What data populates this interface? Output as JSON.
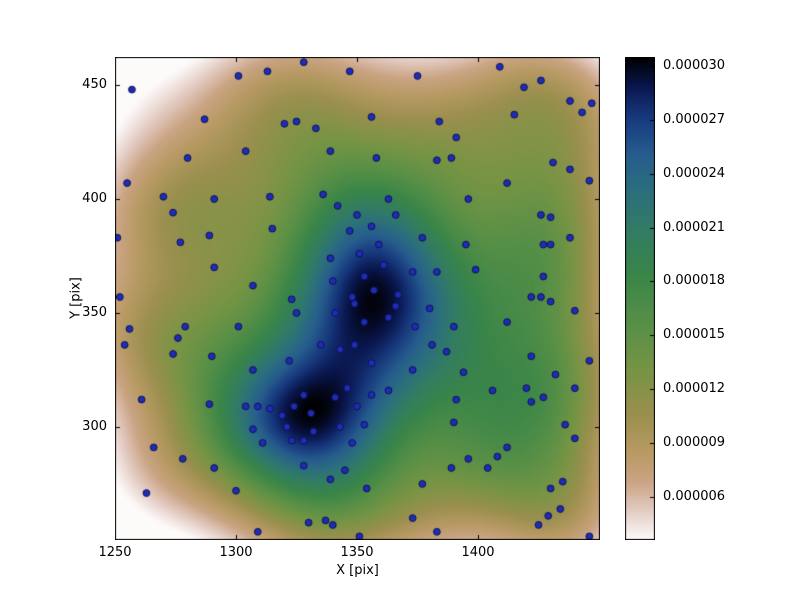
{
  "figure": {
    "background": "#ffffff"
  },
  "chart_data": {
    "type": "heatmap",
    "subtype": "gaussian-kde-density-with-scatter-overlay",
    "title": "",
    "xlabel": "X [pix]",
    "ylabel": "Y [pix]",
    "xlim": [
      1250,
      1450.4
    ],
    "ylim": [
      250.4,
      462.3
    ],
    "x_ticks": [
      1250,
      1300,
      1350,
      1400
    ],
    "x_tick_labels": [
      "1250",
      "1300",
      "1350",
      "1400"
    ],
    "y_ticks": [
      450,
      400,
      350,
      300
    ],
    "y_tick_labels": [
      "450",
      "400",
      "350",
      "300"
    ],
    "grid": false,
    "colorbar": {
      "position": "right",
      "vmin": 3.6e-06,
      "vmax": 3.05e-05,
      "tick_values": [
        3e-05,
        2.7e-05,
        2.4e-05,
        2.1e-05,
        1.8e-05,
        1.5e-05,
        1.2e-05,
        9e-06,
        6e-06
      ],
      "tick_labels": [
        "0.000030",
        "0.000027",
        "0.000024",
        "0.000021",
        "0.000018",
        "0.000015",
        "0.000012",
        "0.000009",
        "0.000006"
      ]
    },
    "colormap": {
      "name": "gist_earth_r",
      "stops": [
        [
          0.0,
          0,
          0,
          0
        ],
        [
          0.06,
          10,
          22,
          77
        ],
        [
          0.12,
          22,
          55,
          124
        ],
        [
          0.2,
          38,
          92,
          141
        ],
        [
          0.28,
          44,
          111,
          125
        ],
        [
          0.36,
          50,
          124,
          99
        ],
        [
          0.45,
          57,
          133,
          72
        ],
        [
          0.55,
          86,
          143,
          70
        ],
        [
          0.65,
          119,
          148,
          68
        ],
        [
          0.74,
          154,
          143,
          78
        ],
        [
          0.82,
          184,
          154,
          100
        ],
        [
          0.88,
          202,
          164,
          132
        ],
        [
          0.94,
          227,
          203,
          194
        ],
        [
          1.0,
          253,
          250,
          250
        ]
      ]
    },
    "kde": {
      "bandwidth": 21,
      "scale_peak_to": 3.05e-05
    },
    "marker": {
      "fill": "#1f2db4",
      "edge": "#0d1257",
      "radius": 3.4
    },
    "points": [
      [
        1257,
        448
      ],
      [
        1301,
        454
      ],
      [
        1313,
        456
      ],
      [
        1328,
        460
      ],
      [
        1347,
        456
      ],
      [
        1375,
        454
      ],
      [
        1409,
        458
      ],
      [
        1419,
        449
      ],
      [
        1426,
        452
      ],
      [
        1438,
        443
      ],
      [
        1447,
        442
      ],
      [
        1287,
        435
      ],
      [
        1320,
        433
      ],
      [
        1325,
        434
      ],
      [
        1333,
        431
      ],
      [
        1356,
        436
      ],
      [
        1384,
        434
      ],
      [
        1391,
        427
      ],
      [
        1415,
        437
      ],
      [
        1443,
        438
      ],
      [
        1280,
        418
      ],
      [
        1304,
        421
      ],
      [
        1339,
        421
      ],
      [
        1358,
        418
      ],
      [
        1383,
        417
      ],
      [
        1389,
        418
      ],
      [
        1431,
        416
      ],
      [
        1438,
        413
      ],
      [
        1255,
        407
      ],
      [
        1270,
        401
      ],
      [
        1274,
        394
      ],
      [
        1291,
        400
      ],
      [
        1314,
        401
      ],
      [
        1336,
        402
      ],
      [
        1342,
        397
      ],
      [
        1350,
        393
      ],
      [
        1363,
        400
      ],
      [
        1366,
        393
      ],
      [
        1396,
        400
      ],
      [
        1412,
        407
      ],
      [
        1426,
        393
      ],
      [
        1430,
        392
      ],
      [
        1446,
        408
      ],
      [
        1251,
        383
      ],
      [
        1277,
        381
      ],
      [
        1289,
        384
      ],
      [
        1315,
        387
      ],
      [
        1339,
        374
      ],
      [
        1347,
        386
      ],
      [
        1351,
        376
      ],
      [
        1356,
        388
      ],
      [
        1359,
        380
      ],
      [
        1377,
        383
      ],
      [
        1395,
        380
      ],
      [
        1427,
        380
      ],
      [
        1430,
        380
      ],
      [
        1438,
        383
      ],
      [
        1291,
        370
      ],
      [
        1307,
        362
      ],
      [
        1323,
        356
      ],
      [
        1340,
        364
      ],
      [
        1348,
        357
      ],
      [
        1353,
        366
      ],
      [
        1357,
        360
      ],
      [
        1361,
        371
      ],
      [
        1367,
        358
      ],
      [
        1373,
        368
      ],
      [
        1383,
        368
      ],
      [
        1399,
        369
      ],
      [
        1422,
        357
      ],
      [
        1426,
        357
      ],
      [
        1427,
        366
      ],
      [
        1252,
        357
      ],
      [
        1256,
        343
      ],
      [
        1276,
        339
      ],
      [
        1279,
        344
      ],
      [
        1301,
        344
      ],
      [
        1325,
        350
      ],
      [
        1341,
        350
      ],
      [
        1349,
        354
      ],
      [
        1353,
        346
      ],
      [
        1363,
        348
      ],
      [
        1366,
        353
      ],
      [
        1374,
        344
      ],
      [
        1380,
        352
      ],
      [
        1390,
        344
      ],
      [
        1412,
        346
      ],
      [
        1430,
        355
      ],
      [
        1440,
        351
      ],
      [
        1254,
        336
      ],
      [
        1274,
        332
      ],
      [
        1290,
        331
      ],
      [
        1307,
        325
      ],
      [
        1322,
        329
      ],
      [
        1335,
        336
      ],
      [
        1343,
        334
      ],
      [
        1349,
        336
      ],
      [
        1356,
        328
      ],
      [
        1373,
        325
      ],
      [
        1381,
        336
      ],
      [
        1387,
        333
      ],
      [
        1394,
        324
      ],
      [
        1422,
        331
      ],
      [
        1432,
        323
      ],
      [
        1446,
        329
      ],
      [
        1261,
        312
      ],
      [
        1289,
        310
      ],
      [
        1304,
        309
      ],
      [
        1309,
        309
      ],
      [
        1314,
        308
      ],
      [
        1319,
        305
      ],
      [
        1324,
        309
      ],
      [
        1328,
        314
      ],
      [
        1331,
        306
      ],
      [
        1341,
        313
      ],
      [
        1346,
        317
      ],
      [
        1350,
        309
      ],
      [
        1356,
        314
      ],
      [
        1363,
        316
      ],
      [
        1391,
        312
      ],
      [
        1406,
        316
      ],
      [
        1420,
        317
      ],
      [
        1422,
        311
      ],
      [
        1427,
        313
      ],
      [
        1440,
        317
      ],
      [
        1266,
        291
      ],
      [
        1278,
        286
      ],
      [
        1307,
        299
      ],
      [
        1311,
        293
      ],
      [
        1321,
        300
      ],
      [
        1323,
        294
      ],
      [
        1328,
        294
      ],
      [
        1332,
        298
      ],
      [
        1343,
        300
      ],
      [
        1348,
        293
      ],
      [
        1353,
        301
      ],
      [
        1390,
        302
      ],
      [
        1396,
        286
      ],
      [
        1408,
        287
      ],
      [
        1412,
        291
      ],
      [
        1436,
        301
      ],
      [
        1440,
        295
      ],
      [
        1291,
        282
      ],
      [
        1300,
        272
      ],
      [
        1328,
        283
      ],
      [
        1339,
        277
      ],
      [
        1345,
        281
      ],
      [
        1354,
        273
      ],
      [
        1377,
        275
      ],
      [
        1389,
        282
      ],
      [
        1404,
        282
      ],
      [
        1430,
        273
      ],
      [
        1435,
        276
      ],
      [
        1263,
        271
      ],
      [
        1309,
        254
      ],
      [
        1330,
        258
      ],
      [
        1337,
        259
      ],
      [
        1340,
        257
      ],
      [
        1351,
        252
      ],
      [
        1373,
        260
      ],
      [
        1383,
        254
      ],
      [
        1425,
        257
      ],
      [
        1429,
        261
      ],
      [
        1434,
        264
      ],
      [
        1446,
        252
      ]
    ]
  }
}
